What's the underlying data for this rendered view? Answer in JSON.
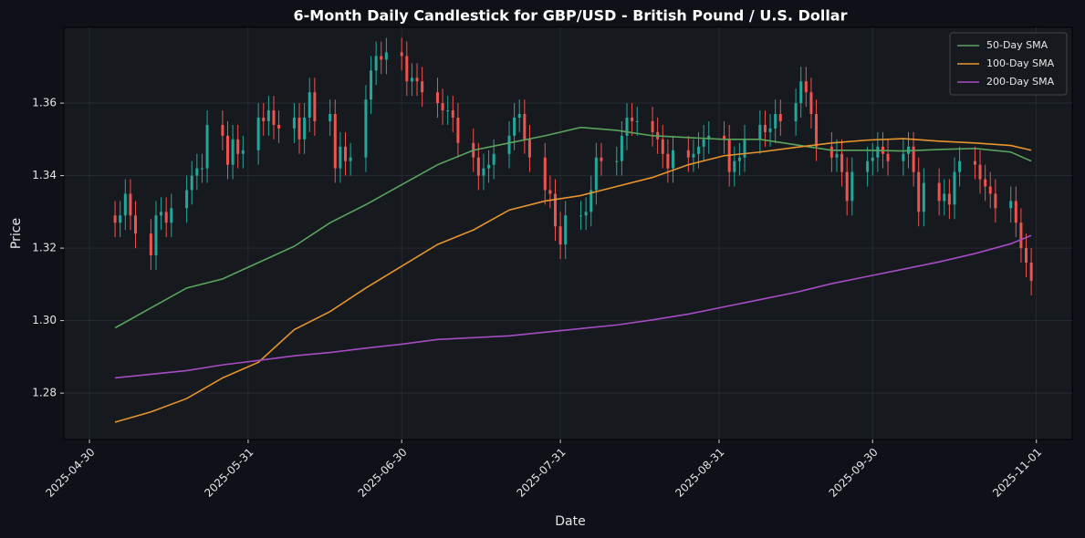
{
  "chart_data": {
    "type": "candlestick",
    "title": "6-Month Daily Candlestick for GBP/USD - British Pound / U.S. Dollar",
    "x_label": "Date",
    "y_label": "Price",
    "x": [
      "2025-05-05",
      "2025-05-06",
      "2025-05-07",
      "2025-05-08",
      "2025-05-09",
      "2025-05-12",
      "2025-05-13",
      "2025-05-14",
      "2025-05-15",
      "2025-05-16",
      "2025-05-19",
      "2025-05-20",
      "2025-05-21",
      "2025-05-22",
      "2025-05-23",
      "2025-05-26",
      "2025-05-27",
      "2025-05-28",
      "2025-05-29",
      "2025-05-30",
      "2025-06-02",
      "2025-06-03",
      "2025-06-04",
      "2025-06-05",
      "2025-06-06",
      "2025-06-09",
      "2025-06-10",
      "2025-06-11",
      "2025-06-12",
      "2025-06-13",
      "2025-06-16",
      "2025-06-17",
      "2025-06-18",
      "2025-06-19",
      "2025-06-20",
      "2025-06-23",
      "2025-06-24",
      "2025-06-25",
      "2025-06-26",
      "2025-06-27",
      "2025-06-30",
      "2025-07-01",
      "2025-07-02",
      "2025-07-03",
      "2025-07-04",
      "2025-07-07",
      "2025-07-08",
      "2025-07-09",
      "2025-07-10",
      "2025-07-11",
      "2025-07-14",
      "2025-07-15",
      "2025-07-16",
      "2025-07-17",
      "2025-07-18",
      "2025-07-21",
      "2025-07-22",
      "2025-07-23",
      "2025-07-24",
      "2025-07-25",
      "2025-07-28",
      "2025-07-29",
      "2025-07-30",
      "2025-07-31",
      "2025-08-01",
      "2025-08-04",
      "2025-08-05",
      "2025-08-06",
      "2025-08-07",
      "2025-08-08",
      "2025-08-11",
      "2025-08-12",
      "2025-08-13",
      "2025-08-14",
      "2025-08-15",
      "2025-08-18",
      "2025-08-19",
      "2025-08-20",
      "2025-08-21",
      "2025-08-22",
      "2025-08-25",
      "2025-08-26",
      "2025-08-27",
      "2025-08-28",
      "2025-08-29",
      "2025-09-01",
      "2025-09-02",
      "2025-09-03",
      "2025-09-04",
      "2025-09-05",
      "2025-09-08",
      "2025-09-09",
      "2025-09-10",
      "2025-09-11",
      "2025-09-12",
      "2025-09-15",
      "2025-09-16",
      "2025-09-17",
      "2025-09-18",
      "2025-09-19",
      "2025-09-22",
      "2025-09-23",
      "2025-09-24",
      "2025-09-25",
      "2025-09-26",
      "2025-09-29",
      "2025-09-30",
      "2025-10-01",
      "2025-10-02",
      "2025-10-03",
      "2025-10-06",
      "2025-10-07",
      "2025-10-08",
      "2025-10-09",
      "2025-10-10",
      "2025-10-13",
      "2025-10-14",
      "2025-10-15",
      "2025-10-16",
      "2025-10-17",
      "2025-10-20",
      "2025-10-21",
      "2025-10-22",
      "2025-10-23",
      "2025-10-24",
      "2025-10-27",
      "2025-10-28",
      "2025-10-29",
      "2025-10-30",
      "2025-10-31"
    ],
    "open": [
      1.329,
      1.327,
      1.329,
      1.335,
      1.329,
      1.324,
      1.318,
      1.329,
      1.33,
      1.327,
      1.331,
      1.336,
      1.34,
      1.342,
      1.342,
      1.354,
      1.351,
      1.343,
      1.35,
      1.346,
      1.347,
      1.356,
      1.355,
      1.358,
      1.354,
      1.353,
      1.356,
      1.35,
      1.356,
      1.363,
      1.355,
      1.357,
      1.342,
      1.348,
      1.344,
      1.345,
      1.361,
      1.369,
      1.373,
      1.372,
      1.374,
      1.373,
      1.366,
      1.367,
      1.366,
      1.363,
      1.36,
      1.358,
      1.358,
      1.356,
      1.349,
      1.345,
      1.34,
      1.342,
      1.343,
      1.346,
      1.351,
      1.356,
      1.357,
      1.35,
      1.345,
      1.336,
      1.335,
      1.326,
      1.321,
      1.329,
      1.329,
      1.33,
      1.336,
      1.345,
      1.344,
      1.344,
      1.351,
      1.356,
      1.355,
      1.355,
      1.352,
      1.35,
      1.346,
      1.342,
      1.347,
      1.345,
      1.346,
      1.348,
      1.35,
      1.351,
      1.35,
      1.341,
      1.344,
      1.345,
      1.35,
      1.354,
      1.352,
      1.353,
      1.357,
      1.355,
      1.36,
      1.366,
      1.363,
      1.357,
      1.348,
      1.345,
      1.346,
      1.341,
      1.333,
      1.341,
      1.344,
      1.345,
      1.348,
      1.346,
      1.344,
      1.346,
      1.348,
      1.341,
      1.33,
      1.338,
      1.333,
      1.335,
      1.332,
      1.341,
      1.344,
      1.343,
      1.339,
      1.337,
      1.335,
      1.331,
      1.333,
      1.327,
      1.32,
      1.316
    ],
    "high": [
      1.333,
      1.333,
      1.339,
      1.339,
      1.333,
      1.328,
      1.333,
      1.334,
      1.334,
      1.335,
      1.34,
      1.344,
      1.346,
      1.346,
      1.358,
      1.358,
      1.355,
      1.354,
      1.354,
      1.351,
      1.36,
      1.36,
      1.362,
      1.362,
      1.358,
      1.36,
      1.36,
      1.36,
      1.367,
      1.367,
      1.361,
      1.361,
      1.352,
      1.352,
      1.349,
      1.365,
      1.373,
      1.377,
      1.377,
      1.378,
      1.378,
      1.377,
      1.371,
      1.371,
      1.37,
      1.367,
      1.364,
      1.362,
      1.362,
      1.36,
      1.353,
      1.349,
      1.346,
      1.347,
      1.35,
      1.355,
      1.36,
      1.361,
      1.361,
      1.354,
      1.349,
      1.34,
      1.339,
      1.33,
      1.333,
      1.333,
      1.334,
      1.34,
      1.349,
      1.349,
      1.348,
      1.355,
      1.36,
      1.36,
      1.359,
      1.359,
      1.356,
      1.354,
      1.35,
      1.351,
      1.351,
      1.35,
      1.352,
      1.354,
      1.355,
      1.355,
      1.354,
      1.348,
      1.349,
      1.354,
      1.358,
      1.358,
      1.357,
      1.361,
      1.361,
      1.364,
      1.37,
      1.37,
      1.367,
      1.361,
      1.352,
      1.35,
      1.35,
      1.345,
      1.345,
      1.348,
      1.349,
      1.352,
      1.352,
      1.35,
      1.35,
      1.352,
      1.352,
      1.345,
      1.342,
      1.342,
      1.339,
      1.339,
      1.345,
      1.348,
      1.348,
      1.347,
      1.343,
      1.341,
      1.339,
      1.337,
      1.337,
      1.331,
      1.324,
      1.32
    ],
    "low": [
      1.323,
      1.323,
      1.325,
      1.325,
      1.32,
      1.314,
      1.314,
      1.325,
      1.323,
      1.323,
      1.327,
      1.332,
      1.336,
      1.338,
      1.338,
      1.347,
      1.339,
      1.339,
      1.342,
      1.342,
      1.343,
      1.351,
      1.351,
      1.35,
      1.349,
      1.349,
      1.346,
      1.346,
      1.352,
      1.351,
      1.351,
      1.338,
      1.338,
      1.34,
      1.34,
      1.341,
      1.357,
      1.365,
      1.368,
      1.368,
      1.369,
      1.362,
      1.362,
      1.362,
      1.359,
      1.356,
      1.354,
      1.354,
      1.352,
      1.345,
      1.341,
      1.336,
      1.336,
      1.338,
      1.339,
      1.342,
      1.347,
      1.352,
      1.346,
      1.341,
      1.332,
      1.331,
      1.322,
      1.317,
      1.317,
      1.325,
      1.325,
      1.326,
      1.332,
      1.34,
      1.34,
      1.34,
      1.347,
      1.351,
      1.351,
      1.348,
      1.346,
      1.342,
      1.338,
      1.338,
      1.341,
      1.341,
      1.342,
      1.344,
      1.346,
      1.346,
      1.337,
      1.337,
      1.34,
      1.341,
      1.346,
      1.348,
      1.348,
      1.349,
      1.351,
      1.351,
      1.356,
      1.359,
      1.353,
      1.344,
      1.341,
      1.341,
      1.337,
      1.329,
      1.329,
      1.337,
      1.34,
      1.341,
      1.342,
      1.34,
      1.34,
      1.342,
      1.337,
      1.326,
      1.326,
      1.329,
      1.329,
      1.328,
      1.328,
      1.337,
      1.339,
      1.335,
      1.333,
      1.331,
      1.327,
      1.327,
      1.323,
      1.316,
      1.312,
      1.307
    ],
    "close": [
      1.327,
      1.329,
      1.335,
      1.329,
      1.324,
      1.318,
      1.329,
      1.33,
      1.327,
      1.331,
      1.336,
      1.34,
      1.342,
      1.342,
      1.354,
      1.351,
      1.343,
      1.35,
      1.346,
      1.347,
      1.356,
      1.355,
      1.358,
      1.354,
      1.353,
      1.356,
      1.35,
      1.356,
      1.363,
      1.355,
      1.357,
      1.342,
      1.348,
      1.344,
      1.345,
      1.361,
      1.369,
      1.373,
      1.372,
      1.374,
      1.373,
      1.366,
      1.367,
      1.366,
      1.363,
      1.36,
      1.358,
      1.358,
      1.356,
      1.349,
      1.345,
      1.34,
      1.342,
      1.343,
      1.346,
      1.351,
      1.356,
      1.357,
      1.35,
      1.345,
      1.336,
      1.335,
      1.326,
      1.321,
      1.329,
      1.329,
      1.33,
      1.336,
      1.345,
      1.344,
      1.344,
      1.351,
      1.356,
      1.355,
      1.355,
      1.352,
      1.35,
      1.346,
      1.342,
      1.347,
      1.345,
      1.346,
      1.348,
      1.35,
      1.351,
      1.35,
      1.341,
      1.344,
      1.345,
      1.35,
      1.354,
      1.352,
      1.353,
      1.357,
      1.355,
      1.36,
      1.366,
      1.363,
      1.357,
      1.348,
      1.345,
      1.346,
      1.341,
      1.333,
      1.341,
      1.344,
      1.345,
      1.348,
      1.346,
      1.344,
      1.346,
      1.348,
      1.341,
      1.33,
      1.338,
      1.333,
      1.335,
      1.332,
      1.341,
      1.344,
      1.343,
      1.339,
      1.337,
      1.335,
      1.331,
      1.333,
      1.327,
      1.32,
      1.316,
      1.311
    ],
    "up_color": "#26a69a",
    "down_color": "#ef5350",
    "series": [
      {
        "name": "50-Day SMA",
        "color": "#5aa55e",
        "x": [
          "2025-05-05",
          "2025-05-12",
          "2025-05-19",
          "2025-05-26",
          "2025-06-02",
          "2025-06-09",
          "2025-06-16",
          "2025-06-23",
          "2025-06-30",
          "2025-07-07",
          "2025-07-14",
          "2025-07-21",
          "2025-07-28",
          "2025-08-04",
          "2025-08-11",
          "2025-08-18",
          "2025-08-25",
          "2025-09-01",
          "2025-09-08",
          "2025-09-15",
          "2025-09-22",
          "2025-09-29",
          "2025-10-06",
          "2025-10-13",
          "2025-10-20",
          "2025-10-27",
          "2025-10-31"
        ],
        "values": [
          1.298,
          1.3035,
          1.309,
          1.3115,
          1.316,
          1.3205,
          1.327,
          1.332,
          1.3375,
          1.343,
          1.347,
          1.349,
          1.351,
          1.3533,
          1.3525,
          1.351,
          1.3505,
          1.35,
          1.35,
          1.3485,
          1.347,
          1.347,
          1.3468,
          1.3472,
          1.3475,
          1.3465,
          1.344
        ]
      },
      {
        "name": "100-Day SMA",
        "color": "#e8942c",
        "x": [
          "2025-05-05",
          "2025-05-12",
          "2025-05-19",
          "2025-05-26",
          "2025-06-02",
          "2025-06-09",
          "2025-06-16",
          "2025-06-23",
          "2025-06-30",
          "2025-07-07",
          "2025-07-14",
          "2025-07-21",
          "2025-07-28",
          "2025-08-04",
          "2025-08-11",
          "2025-08-18",
          "2025-08-25",
          "2025-09-01",
          "2025-09-08",
          "2025-09-15",
          "2025-09-22",
          "2025-09-29",
          "2025-10-06",
          "2025-10-13",
          "2025-10-20",
          "2025-10-27",
          "2025-10-31"
        ],
        "values": [
          1.272,
          1.2748,
          1.2785,
          1.2842,
          1.2885,
          1.2975,
          1.3025,
          1.309,
          1.315,
          1.321,
          1.325,
          1.3305,
          1.333,
          1.3345,
          1.337,
          1.3395,
          1.343,
          1.3455,
          1.3465,
          1.3478,
          1.349,
          1.3498,
          1.3502,
          1.3495,
          1.349,
          1.3483,
          1.347
        ]
      },
      {
        "name": "200-Day SMA",
        "color": "#a64cc4",
        "x": [
          "2025-05-05",
          "2025-05-12",
          "2025-05-19",
          "2025-05-26",
          "2025-06-02",
          "2025-06-09",
          "2025-06-16",
          "2025-06-23",
          "2025-06-30",
          "2025-07-07",
          "2025-07-14",
          "2025-07-21",
          "2025-07-28",
          "2025-08-04",
          "2025-08-11",
          "2025-08-18",
          "2025-08-25",
          "2025-09-01",
          "2025-09-08",
          "2025-09-15",
          "2025-09-22",
          "2025-09-29",
          "2025-10-06",
          "2025-10-13",
          "2025-10-20",
          "2025-10-27",
          "2025-10-31"
        ],
        "values": [
          1.2842,
          1.2852,
          1.2862,
          1.2878,
          1.289,
          1.2903,
          1.2912,
          1.2924,
          1.2935,
          1.2948,
          1.2953,
          1.2958,
          1.2968,
          1.2978,
          1.2988,
          1.3002,
          1.3018,
          1.3038,
          1.3058,
          1.3078,
          1.3102,
          1.3122,
          1.3142,
          1.3162,
          1.3185,
          1.3212,
          1.3235
        ]
      }
    ],
    "xlim": [
      "2025-04-25",
      "2025-11-08"
    ],
    "xticks": [
      "2025-04-30",
      "2025-05-31",
      "2025-06-30",
      "2025-07-31",
      "2025-08-31",
      "2025-09-30",
      "2025-11-01"
    ],
    "ylim": [
      1.2672,
      1.3809
    ],
    "yticks": [
      1.28,
      {
        "value": 1.3,
        "label": "1.30"
      },
      1.32,
      1.34,
      1.36
    ],
    "grid": true,
    "legend": "upper right"
  }
}
